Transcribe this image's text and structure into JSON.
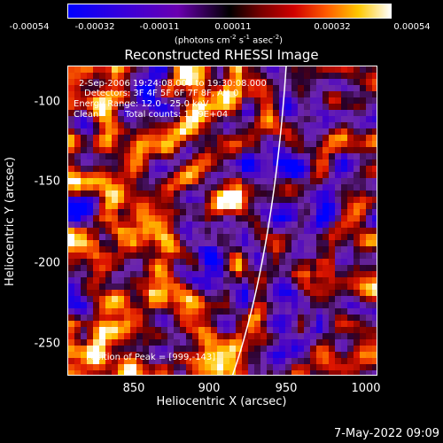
{
  "colorbar": {
    "ticks": [
      "-0.00054",
      "-0.00032",
      "-0.00011",
      "0.00011",
      "0.00032",
      "0.00054"
    ],
    "units_prefix": "(photons cm",
    "units_exp1": "-2",
    "units_mid1": " s",
    "units_exp2": "-1",
    "units_mid2": " asec",
    "units_exp3": "-2",
    "units_suffix": ")"
  },
  "plot": {
    "title": "Reconstructed RHESSI Image",
    "annotation_time": "2-Sep-2006 19:24:08.000 to 19:30:08.000",
    "annotation_detectors": "Detectors: 3F 4F 5F 6F 7F 8F, Att 0",
    "annotation_energy": "Energy Range: 12.0 - 25.0 keV",
    "annotation_clean": "Clean",
    "annotation_counts": "Total counts: 1.69E+04",
    "peak_label": "Position of Peak = [999,-143]",
    "x_label": "Heliocentric X (arcsec)",
    "y_label": "Heliocentric Y (arcsec)",
    "x_ticks": [
      "850",
      "900",
      "950",
      "1000"
    ],
    "y_ticks": [
      "-100",
      "-150",
      "-200",
      "-250"
    ]
  },
  "footer": {
    "timestamp": "7-May-2022 09:09"
  }
}
